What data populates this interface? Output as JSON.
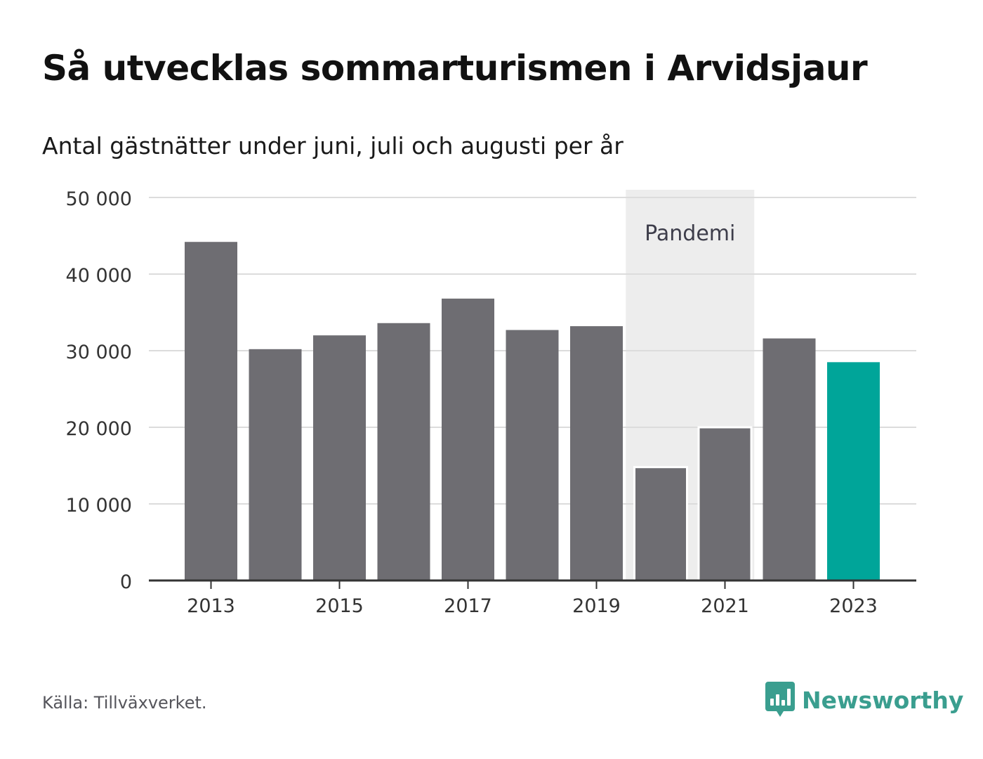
{
  "header": {
    "title": "Så utvecklas sommarturismen i Arvidsjaur",
    "subtitle": "Antal gästnätter under juni, juli och augusti per år"
  },
  "footer": {
    "source": "Källa: Tillväxverket.",
    "brand": "Newsworthy"
  },
  "colors": {
    "bar": "#6e6d72",
    "highlight": "#00a599",
    "band": "#ededed",
    "brand": "#3a9e8f",
    "grid": "#dcdcdc",
    "axis": "#333333"
  },
  "chart_data": {
    "type": "bar",
    "categories": [
      "2013",
      "2014",
      "2015",
      "2016",
      "2017",
      "2018",
      "2019",
      "2020",
      "2021",
      "2022",
      "2023"
    ],
    "values": [
      44200,
      30200,
      32000,
      33600,
      36800,
      32700,
      33200,
      14800,
      20000,
      31600,
      28500
    ],
    "highlight": "2023",
    "ylim": [
      0,
      50000
    ],
    "yticks": [
      0,
      10000,
      20000,
      30000,
      40000,
      50000
    ],
    "ytick_labels": [
      "0",
      "10 000",
      "20 000",
      "30 000",
      "40 000",
      "50 000"
    ],
    "xtick_labels": [
      "2013",
      "2015",
      "2017",
      "2019",
      "2021",
      "2023"
    ],
    "grid": true,
    "annotation": {
      "label": "Pandemi",
      "from": "2020",
      "to": "2021"
    }
  }
}
